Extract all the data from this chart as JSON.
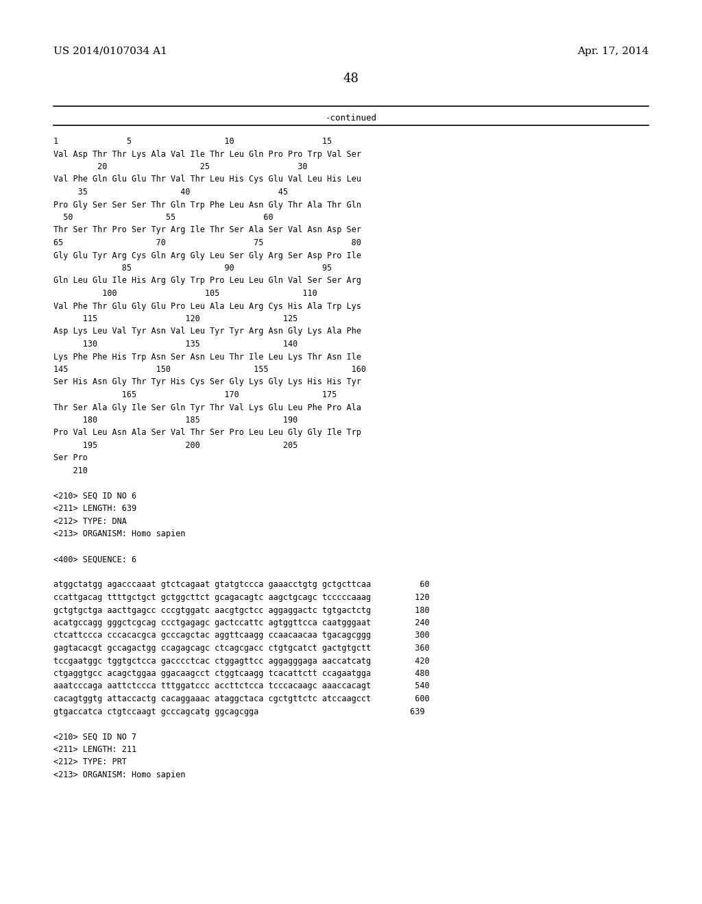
{
  "header_left": "US 2014/0107034 A1",
  "header_right": "Apr. 17, 2014",
  "page_number": "48",
  "continued": "-continued",
  "background_color": "#ffffff",
  "text_color": "#000000",
  "content_lines": [
    "1              5                   10                  15",
    "Val Asp Thr Thr Lys Ala Val Ile Thr Leu Gln Pro Pro Trp Val Ser",
    "         20                   25                  30",
    "Val Phe Gln Glu Glu Thr Val Thr Leu His Cys Glu Val Leu His Leu",
    "     35                   40                  45",
    "Pro Gly Ser Ser Ser Thr Gln Trp Phe Leu Asn Gly Thr Ala Thr Gln",
    "  50                   55                  60",
    "Thr Ser Thr Pro Ser Tyr Arg Ile Thr Ser Ala Ser Val Asn Asp Ser",
    "65                   70                  75                  80",
    "Gly Glu Tyr Arg Cys Gln Arg Gly Leu Ser Gly Arg Ser Asp Pro Ile",
    "              85                   90                  95",
    "Gln Leu Glu Ile His Arg Gly Trp Pro Leu Leu Gln Val Ser Ser Arg",
    "          100                  105                 110",
    "Val Phe Thr Glu Gly Glu Pro Leu Ala Leu Arg Cys His Ala Trp Lys",
    "      115                  120                 125",
    "Asp Lys Leu Val Tyr Asn Val Leu Tyr Tyr Arg Asn Gly Lys Ala Phe",
    "      130                  135                 140",
    "Lys Phe Phe His Trp Asn Ser Asn Leu Thr Ile Leu Lys Thr Asn Ile",
    "145                  150                 155                 160",
    "Ser His Asn Gly Thr Tyr His Cys Ser Gly Lys Gly Lys His His Tyr",
    "              165                  170                 175",
    "Thr Ser Ala Gly Ile Ser Gln Tyr Thr Val Lys Glu Leu Phe Pro Ala",
    "      180                  185                 190",
    "Pro Val Leu Asn Ala Ser Val Thr Ser Pro Leu Leu Gly Gly Ile Trp",
    "      195                  200                 205",
    "Ser Pro",
    "    210",
    "",
    "<210> SEQ ID NO 6",
    "<211> LENGTH: 639",
    "<212> TYPE: DNA",
    "<213> ORGANISM: Homo sapien",
    "",
    "<400> SEQUENCE: 6",
    "",
    "atggctatgg agacccaaat gtctcagaat gtatgtccca gaaacctgtg gctgcttcaa          60",
    "ccattgacag ttttgctgct gctggcttct gcagacagtc aagctgcagc tcccccaaag         120",
    "gctgtgctga aacttgagcc cccgtggatc aacgtgctcc aggaggactc tgtgactctg         180",
    "acatgccagg gggctcgcag ccctgagagc gactccattc agtggttcca caatgggaat         240",
    "ctcattccca cccacacgca gcccagctac aggttcaagg ccaacaacaa tgacagcggg         300",
    "gagtacacgt gccagactgg ccagagcagc ctcagcgacc ctgtgcatct gactgtgctt         360",
    "tccgaatggc tggtgctcca gacccctcac ctggagttcc aggagggaga aaccatcatg         420",
    "ctgaggtgcc acagctggaa ggacaagcct ctggtcaagg tcacattctt ccagaatgga         480",
    "aaatcccaga aattctccca tttggatccc accttctcca tcccacaagc aaaccacagt         540",
    "cacagtggtg attaccactg cacaggaaac ataggctaca cgctgttctc atccaagcct         600",
    "gtgaccatca ctgtccaagt gcccagcatg ggcagcgga                               639",
    "",
    "<210> SEQ ID NO 7",
    "<211> LENGTH: 211",
    "<212> TYPE: PRT",
    "<213> ORGANISM: Homo sapien"
  ]
}
